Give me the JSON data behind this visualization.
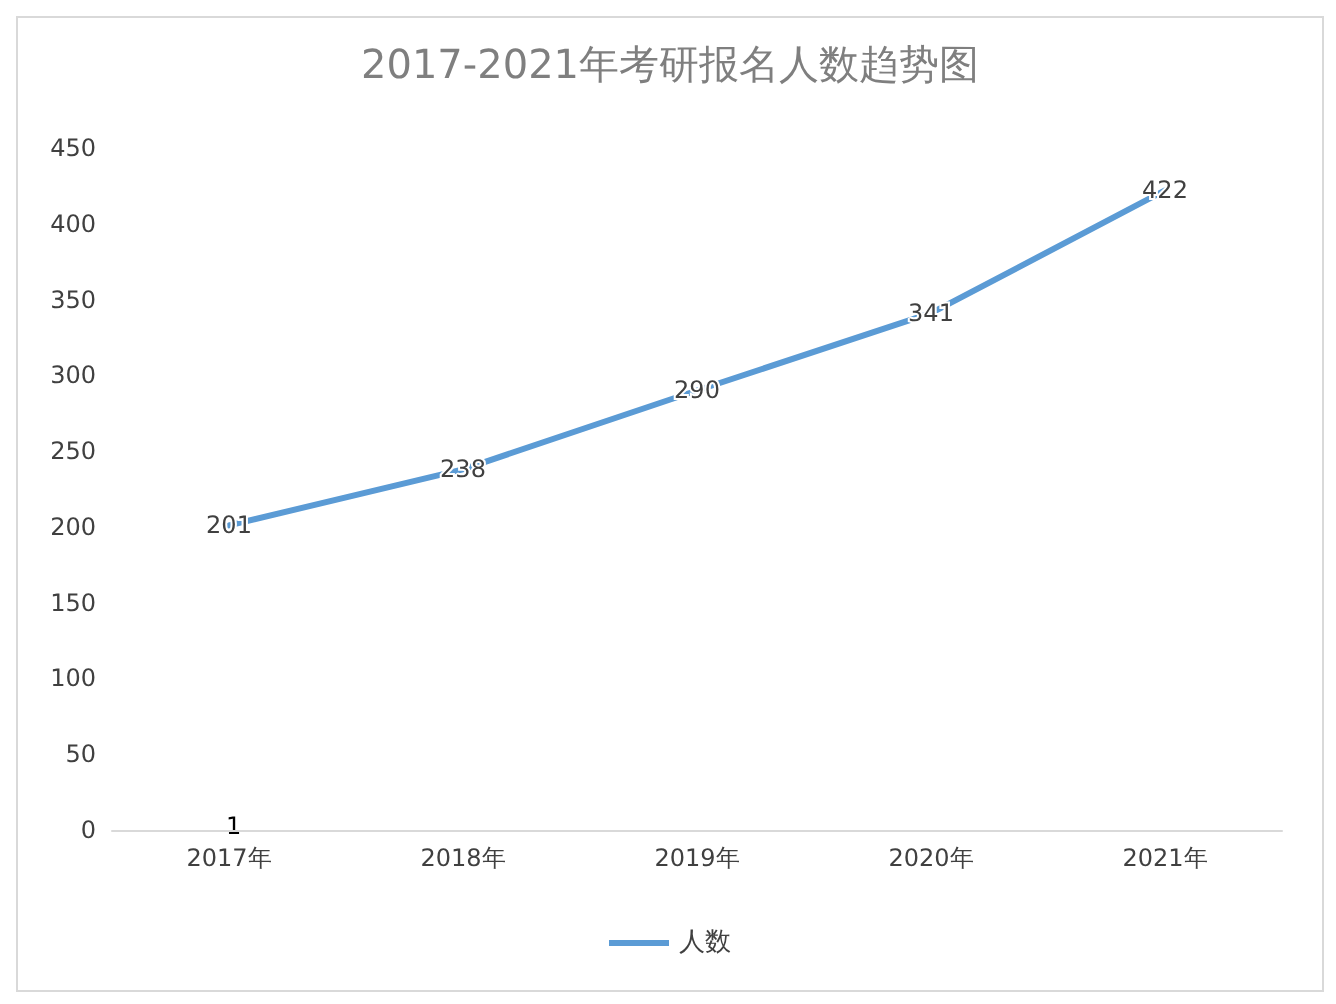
{
  "chart_data": {
    "type": "line",
    "title": "2017-2021年考研报名人数趋势图",
    "categories": [
      "2017年",
      "2018年",
      "2019年",
      "2020年",
      "2021年"
    ],
    "series": [
      {
        "name": "人数",
        "color": "#5b9bd5",
        "values": [
          201,
          238,
          290,
          341,
          422
        ]
      }
    ],
    "ylim": [
      0,
      450
    ],
    "yticks": [
      0,
      50,
      100,
      150,
      200,
      250,
      300,
      350,
      400,
      450
    ],
    "data_labels": true,
    "marker": "none",
    "line_style": "solid",
    "grid": false,
    "legend": "bottom",
    "annotations": [
      "1"
    ]
  }
}
